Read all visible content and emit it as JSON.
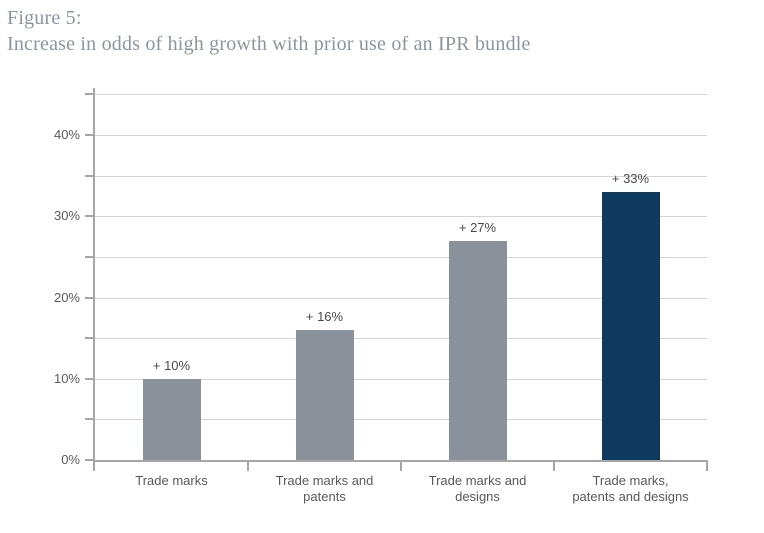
{
  "title": {
    "line1": "Figure 5:",
    "line2": "Increase in odds of high growth with prior use of an IPR bundle"
  },
  "chart_data": {
    "type": "bar",
    "title": "Figure 5: Increase in odds of high growth with prior use of an IPR bundle",
    "categories": [
      "Trade marks",
      "Trade marks and\npatents",
      "Trade marks and\ndesigns",
      "Trade marks,\npatents and designs"
    ],
    "values": [
      10,
      16,
      27,
      33
    ],
    "data_labels": [
      "+ 10%",
      "+ 16%",
      "+ 27%",
      "+ 33%"
    ],
    "xlabel": "",
    "ylabel": "",
    "ylim": [
      0,
      45
    ],
    "yticks": [
      0,
      10,
      20,
      30,
      40
    ],
    "ytick_labels": [
      "0%",
      "10%",
      "20%",
      "30%",
      "40%"
    ],
    "minor_gridline_step": 5,
    "grid": true,
    "legend": false,
    "bar_colors": [
      "#8A919B",
      "#8A919B",
      "#8A919B",
      "#0F3A60"
    ],
    "colors": {
      "grid": "#D5D5D5",
      "axis": "#A6A6A6",
      "tick_label": "#595959",
      "data_label": "#4A4A4A",
      "title": "#8C959D"
    }
  }
}
